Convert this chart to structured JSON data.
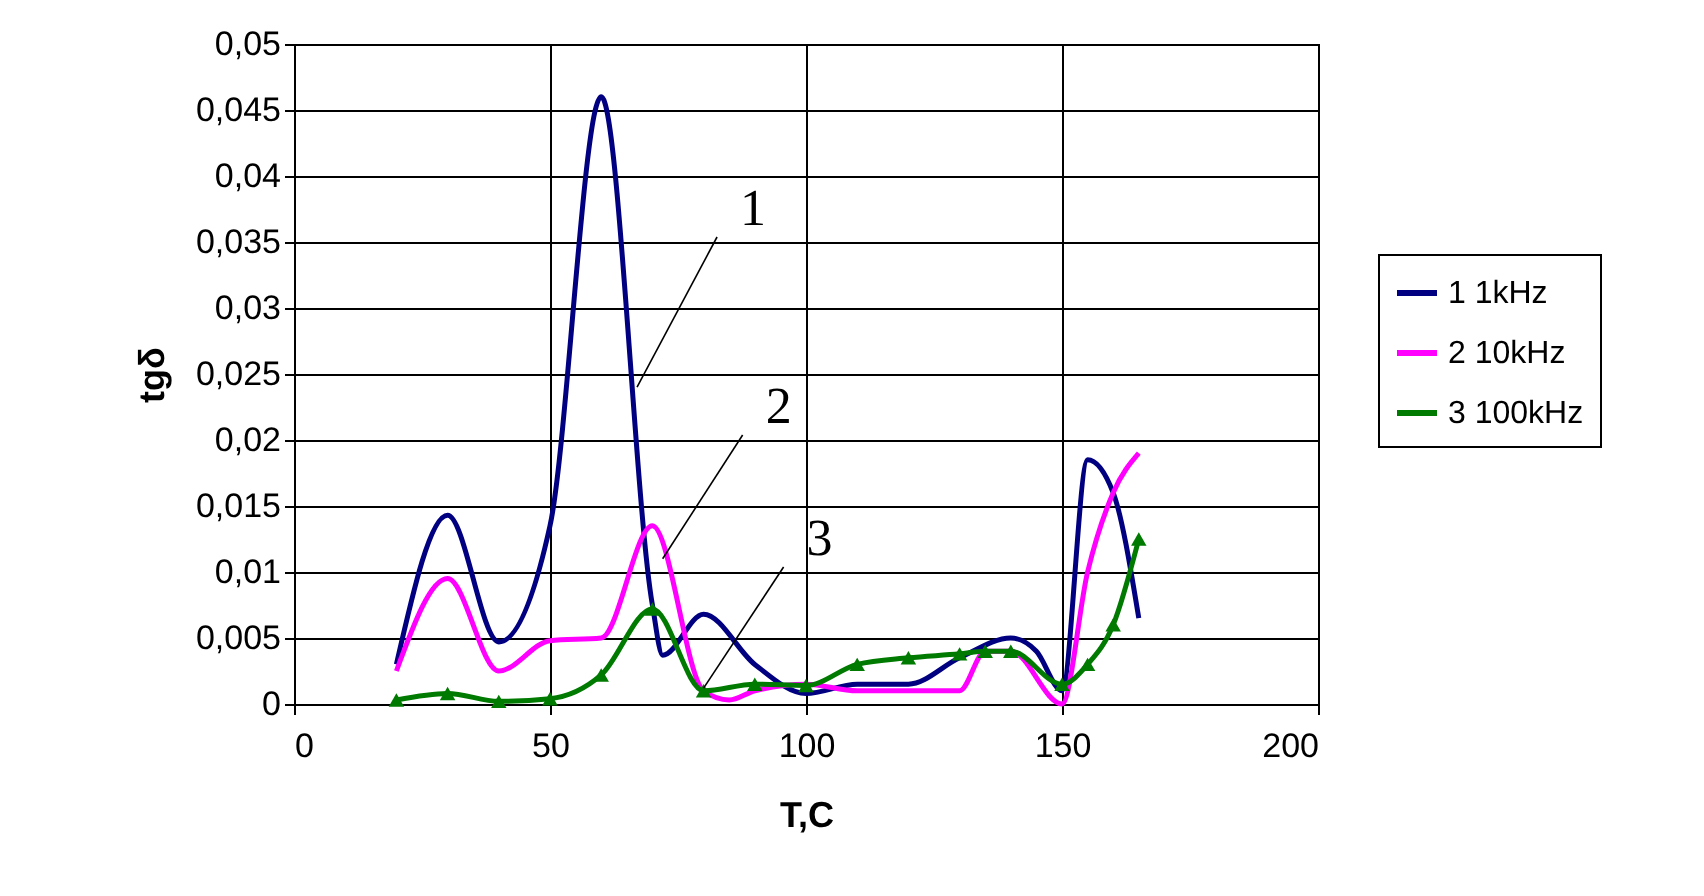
{
  "chart_data": {
    "type": "line",
    "xlabel": "T,C",
    "ylabel": "tgδ",
    "xlim": [
      0,
      200
    ],
    "xticks": [
      0,
      50,
      100,
      150,
      200
    ],
    "ylim": [
      0,
      0.05
    ],
    "yticks": [
      {
        "value": 0,
        "label": "0"
      },
      {
        "value": 0.005,
        "label": "0,005"
      },
      {
        "value": 0.01,
        "label": "0,01"
      },
      {
        "value": 0.015,
        "label": "0,015"
      },
      {
        "value": 0.02,
        "label": "0,02"
      },
      {
        "value": 0.025,
        "label": "0,025"
      },
      {
        "value": 0.03,
        "label": "0,03"
      },
      {
        "value": 0.035,
        "label": "0,035"
      },
      {
        "value": 0.04,
        "label": "0,04"
      },
      {
        "value": 0.045,
        "label": "0,045"
      },
      {
        "value": 0.05,
        "label": "0,05"
      }
    ],
    "grid": true,
    "legend": "right",
    "series": [
      {
        "name": "1 1kHz",
        "color": "#000080",
        "marker": "none",
        "x": [
          20,
          30,
          40,
          50,
          60,
          70,
          72,
          80,
          90,
          100,
          110,
          120,
          130,
          140,
          145,
          150,
          155,
          160,
          165
        ],
        "values": [
          0.003,
          0.0143,
          0.0047,
          0.0135,
          0.046,
          0.0075,
          0.0037,
          0.0068,
          0.003,
          0.0008,
          0.0015,
          0.0015,
          0.0035,
          0.005,
          0.004,
          0.001,
          0.0185,
          0.016,
          0.0065
        ]
      },
      {
        "name": "2 10kHz",
        "color": "#ff00ff",
        "marker": "none",
        "x": [
          20,
          30,
          40,
          50,
          60,
          70,
          80,
          85,
          90,
          100,
          110,
          120,
          130,
          135,
          140,
          150,
          155,
          160,
          165
        ],
        "values": [
          0.0025,
          0.0095,
          0.0025,
          0.0048,
          0.005,
          0.0135,
          0.001,
          0.0003,
          0.001,
          0.0015,
          0.001,
          0.001,
          0.001,
          0.004,
          0.004,
          0,
          0.01,
          0.016,
          0.019
        ]
      },
      {
        "name": "3 100kHz",
        "color": "#007a00",
        "marker": "triangle",
        "x": [
          20,
          30,
          40,
          50,
          60,
          70,
          80,
          90,
          100,
          110,
          120,
          130,
          135,
          140,
          150,
          155,
          160,
          165
        ],
        "values": [
          0.0003,
          0.0008,
          0.0002,
          0.0004,
          0.0022,
          0.0072,
          0.001,
          0.0015,
          0.0014,
          0.003,
          0.0035,
          0.0038,
          0.004,
          0.004,
          0.0015,
          0.003,
          0.006,
          0.0125
        ]
      }
    ],
    "annotations": [
      {
        "text": "1",
        "x": 67,
        "y": 0.024
      },
      {
        "text": "2",
        "x": 72,
        "y": 0.011
      },
      {
        "text": "3",
        "x": 80,
        "y": 0.0012
      }
    ]
  }
}
